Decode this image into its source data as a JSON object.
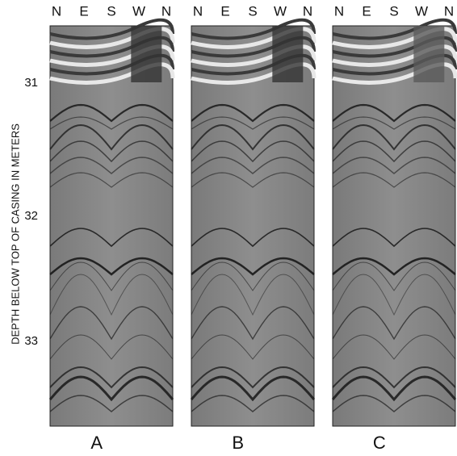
{
  "axis_title": "DEPTH BELOW TOP OF CASING IN METERS",
  "depth_ticks": [
    31,
    32,
    33
  ],
  "panels": [
    {
      "label": "A",
      "directions": [
        "N",
        "E",
        "S",
        "W",
        "N"
      ]
    },
    {
      "label": "B",
      "directions": [
        "N",
        "E",
        "S",
        "W",
        "N"
      ]
    },
    {
      "label": "C",
      "directions": [
        "N",
        "E",
        "S",
        "W",
        "N"
      ]
    }
  ]
}
